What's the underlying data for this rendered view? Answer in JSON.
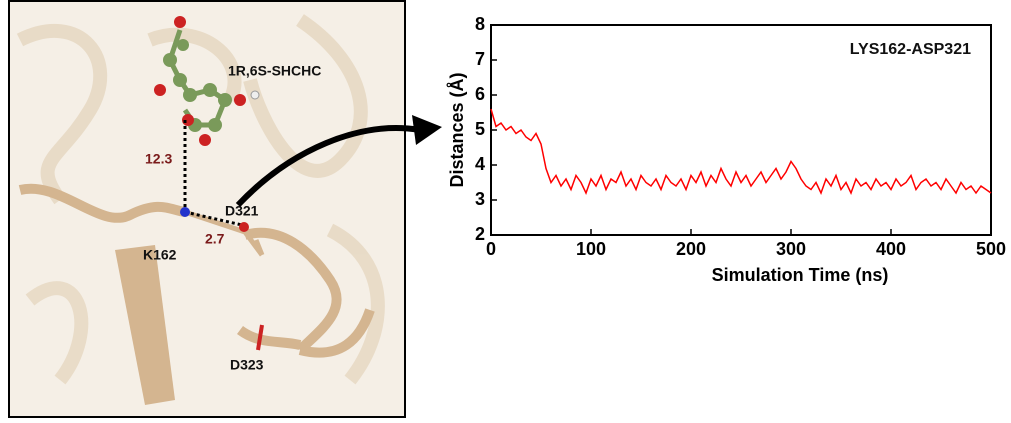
{
  "structure_panel": {
    "ligand": "1R,6S-SHCHC",
    "residues": [
      "K162",
      "D321",
      "D323"
    ],
    "distances": [
      12.3,
      2.7
    ]
  },
  "chart_data": {
    "type": "line",
    "xlabel": "Simulation Time  (ns)",
    "ylabel": "Distances (Å)",
    "xlim": [
      0,
      500
    ],
    "xticks": [
      0,
      100,
      200,
      300,
      400,
      500
    ],
    "ylim": [
      2,
      8
    ],
    "yticks": [
      2,
      3,
      4,
      5,
      6,
      7,
      8
    ],
    "legend": "top-right",
    "x": [
      0,
      5,
      10,
      15,
      20,
      25,
      30,
      35,
      40,
      45,
      50,
      55,
      60,
      65,
      70,
      75,
      80,
      85,
      90,
      95,
      100,
      105,
      110,
      115,
      120,
      125,
      130,
      135,
      140,
      145,
      150,
      155,
      160,
      165,
      170,
      175,
      180,
      185,
      190,
      195,
      200,
      205,
      210,
      215,
      220,
      225,
      230,
      235,
      240,
      245,
      250,
      255,
      260,
      265,
      270,
      275,
      280,
      285,
      290,
      295,
      300,
      305,
      310,
      315,
      320,
      325,
      330,
      335,
      340,
      345,
      350,
      355,
      360,
      365,
      370,
      375,
      380,
      385,
      390,
      395,
      400,
      405,
      410,
      415,
      420,
      425,
      430,
      435,
      440,
      445,
      450,
      455,
      460,
      465,
      470,
      475,
      480,
      485,
      490,
      495,
      500
    ],
    "series": [
      {
        "name": "LYS162-ASP321",
        "color": "#ff0000",
        "values": [
          5.6,
          5.1,
          5.2,
          5.0,
          5.1,
          4.9,
          5.0,
          4.8,
          4.7,
          4.9,
          4.6,
          3.9,
          3.5,
          3.7,
          3.4,
          3.6,
          3.3,
          3.7,
          3.5,
          3.2,
          3.6,
          3.4,
          3.7,
          3.3,
          3.6,
          3.5,
          3.8,
          3.4,
          3.6,
          3.3,
          3.7,
          3.5,
          3.4,
          3.6,
          3.3,
          3.7,
          3.5,
          3.4,
          3.6,
          3.3,
          3.7,
          3.5,
          3.8,
          3.4,
          3.7,
          3.5,
          3.9,
          3.6,
          3.4,
          3.8,
          3.5,
          3.7,
          3.4,
          3.6,
          3.8,
          3.5,
          3.7,
          3.9,
          3.6,
          3.8,
          4.1,
          3.9,
          3.6,
          3.4,
          3.3,
          3.5,
          3.2,
          3.6,
          3.4,
          3.7,
          3.3,
          3.5,
          3.2,
          3.6,
          3.4,
          3.5,
          3.3,
          3.6,
          3.4,
          3.5,
          3.3,
          3.6,
          3.4,
          3.5,
          3.7,
          3.3,
          3.5,
          3.6,
          3.4,
          3.5,
          3.3,
          3.6,
          3.4,
          3.2,
          3.5,
          3.3,
          3.4,
          3.2,
          3.4,
          3.3,
          3.2
        ]
      }
    ]
  }
}
